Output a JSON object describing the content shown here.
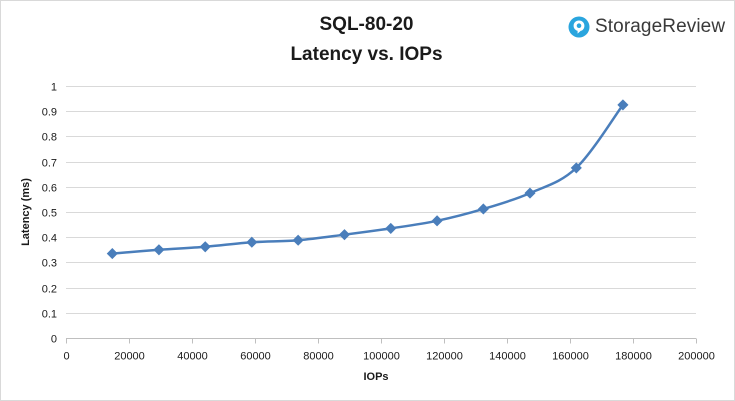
{
  "title_line1": "SQL-80-20",
  "title_line2": "Latency vs. IOPs",
  "logo": {
    "text": "StorageReview",
    "icon": "storagereview-logo-icon",
    "color": "#2aa5de"
  },
  "chart_data": {
    "type": "line",
    "title": "SQL-80-20 Latency vs. IOPs",
    "xlabel": "IOPs",
    "ylabel": "Latency (ms)",
    "xlim": [
      0,
      200000
    ],
    "ylim": [
      0,
      1
    ],
    "x_ticks": [
      0,
      20000,
      40000,
      60000,
      80000,
      100000,
      120000,
      140000,
      160000,
      180000,
      200000
    ],
    "y_ticks": [
      0,
      0.1,
      0.2,
      0.3,
      0.4,
      0.5,
      0.6,
      0.7,
      0.8,
      0.9,
      1
    ],
    "grid": "horizontal",
    "legend": "none",
    "line_color": "#4a7ebb",
    "series": [
      {
        "x": [
          14700,
          29500,
          44200,
          59000,
          73700,
          88400,
          103100,
          117800,
          132500,
          147300,
          162000,
          176800
        ],
        "y": [
          0.335,
          0.35,
          0.362,
          0.38,
          0.388,
          0.41,
          0.435,
          0.465,
          0.512,
          0.575,
          0.675,
          0.925
        ]
      }
    ]
  }
}
